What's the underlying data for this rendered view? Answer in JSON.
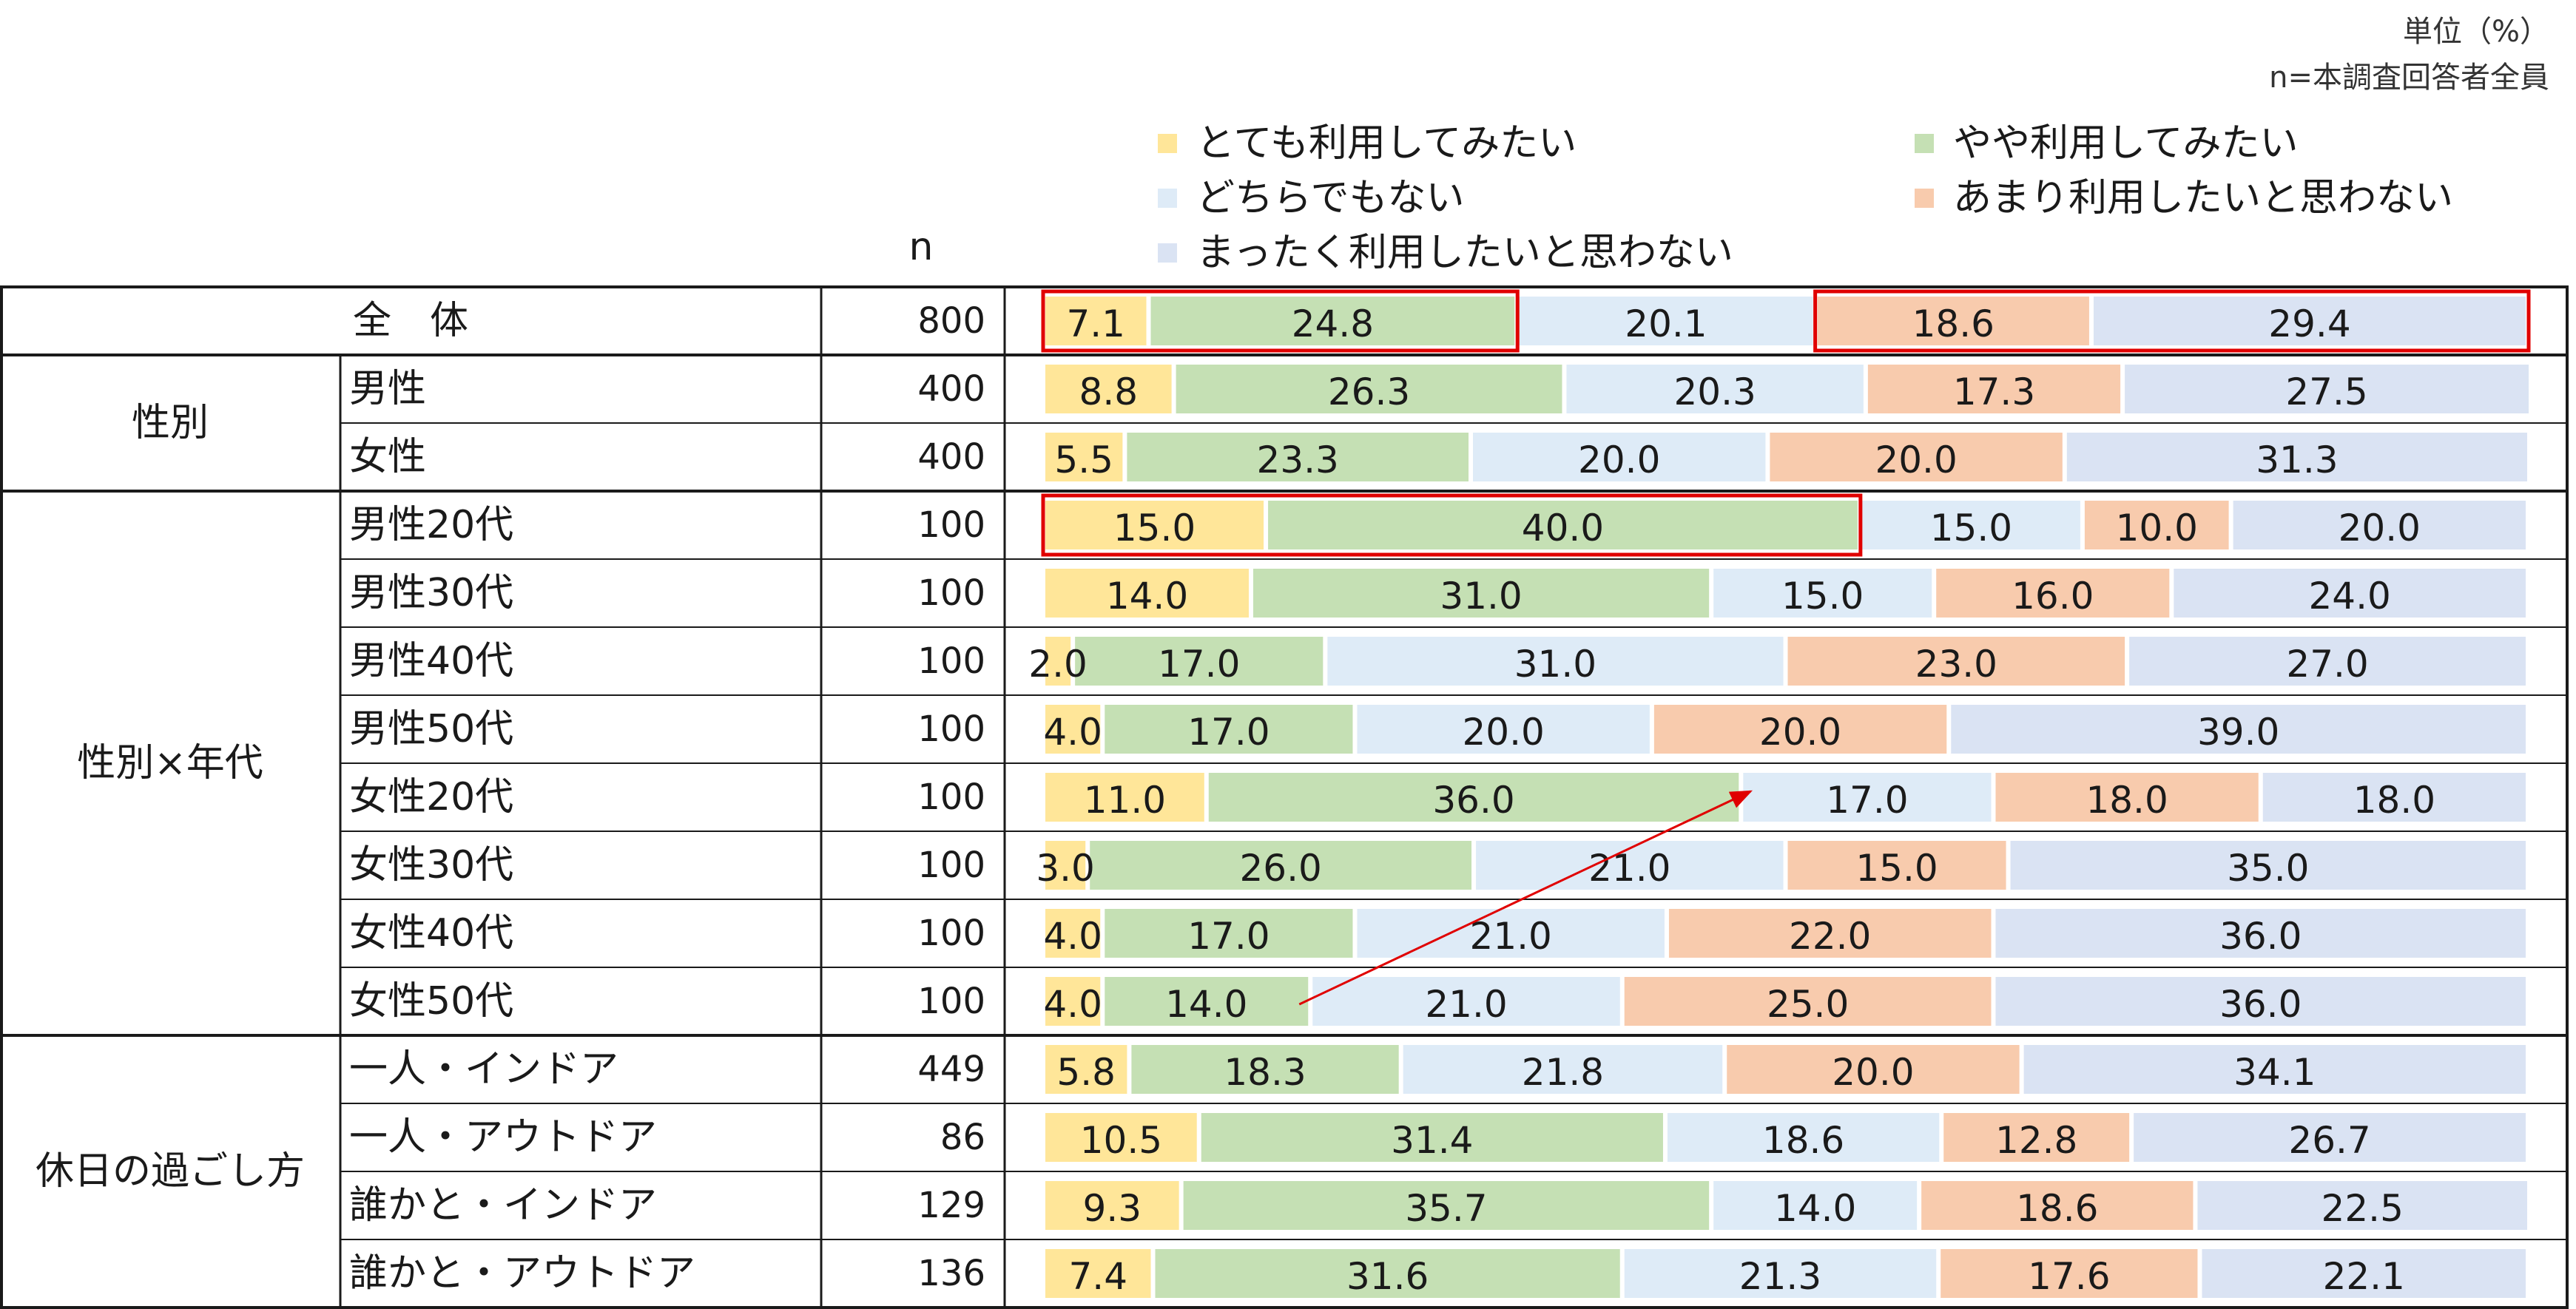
{
  "unit_label": "単位（%）",
  "n_note": "n=本調査回答者全員",
  "n_header": "n",
  "legend": [
    {
      "label": "とても利用してみたい",
      "color": "#FFE699"
    },
    {
      "label": "やや利用してみたい",
      "color": "#C5E0B4"
    },
    {
      "label": "どちらでもない",
      "color": "#DEEBF7"
    },
    {
      "label": "あまり利用したいと思わない",
      "color": "#F8CBAD"
    },
    {
      "label": "まったく利用したいと思わない",
      "color": "#DAE3F3"
    }
  ],
  "groups": [
    {
      "label": "全　体",
      "rows": [
        0
      ]
    },
    {
      "label": "性別",
      "rows": [
        1,
        2
      ]
    },
    {
      "label": "性別×年代",
      "rows": [
        3,
        4,
        5,
        6,
        7,
        8,
        9,
        10
      ]
    },
    {
      "label": "休日の過ごし方",
      "rows": [
        11,
        12,
        13,
        14
      ]
    }
  ],
  "chart_data": {
    "type": "bar",
    "stacked": true,
    "orientation": "horizontal",
    "percent": true,
    "xlim": [
      0,
      100
    ],
    "series_names": [
      "とても利用してみたい",
      "やや利用してみたい",
      "どちらでもない",
      "あまり利用したいと思わない",
      "まったく利用したいと思わない"
    ],
    "rows": [
      {
        "label": "",
        "n": "800",
        "values": [
          7.1,
          24.8,
          20.1,
          18.6,
          29.4
        ]
      },
      {
        "label": "男性",
        "n": "400",
        "values": [
          8.8,
          26.3,
          20.3,
          17.3,
          27.5
        ]
      },
      {
        "label": "女性",
        "n": "400",
        "values": [
          5.5,
          23.3,
          20.0,
          20.0,
          31.3
        ]
      },
      {
        "label": "男性20代",
        "n": "100",
        "values": [
          15.0,
          40.0,
          15.0,
          10.0,
          20.0
        ]
      },
      {
        "label": "男性30代",
        "n": "100",
        "values": [
          14.0,
          31.0,
          15.0,
          16.0,
          24.0
        ]
      },
      {
        "label": "男性40代",
        "n": "100",
        "values": [
          2.0,
          17.0,
          31.0,
          23.0,
          27.0
        ]
      },
      {
        "label": "男性50代",
        "n": "100",
        "values": [
          4.0,
          17.0,
          20.0,
          20.0,
          39.0
        ]
      },
      {
        "label": "女性20代",
        "n": "100",
        "values": [
          11.0,
          36.0,
          17.0,
          18.0,
          18.0
        ]
      },
      {
        "label": "女性30代",
        "n": "100",
        "values": [
          3.0,
          26.0,
          21.0,
          15.0,
          35.0
        ]
      },
      {
        "label": "女性40代",
        "n": "100",
        "values": [
          4.0,
          17.0,
          21.0,
          22.0,
          36.0
        ]
      },
      {
        "label": "女性50代",
        "n": "100",
        "values": [
          4.0,
          14.0,
          21.0,
          25.0,
          36.0
        ]
      },
      {
        "label": "一人・インドア",
        "n": "449",
        "values": [
          5.8,
          18.3,
          21.8,
          20.0,
          34.1
        ]
      },
      {
        "label": "一人・アウトドア",
        "n": "86",
        "values": [
          10.5,
          31.4,
          18.6,
          12.8,
          26.7
        ]
      },
      {
        "label": "誰かと・インドア",
        "n": "129",
        "values": [
          9.3,
          35.7,
          14.0,
          18.6,
          22.5
        ]
      },
      {
        "label": "誰かと・アウトドア",
        "n": "136",
        "values": [
          7.4,
          31.6,
          21.3,
          17.6,
          22.1
        ]
      }
    ]
  }
}
